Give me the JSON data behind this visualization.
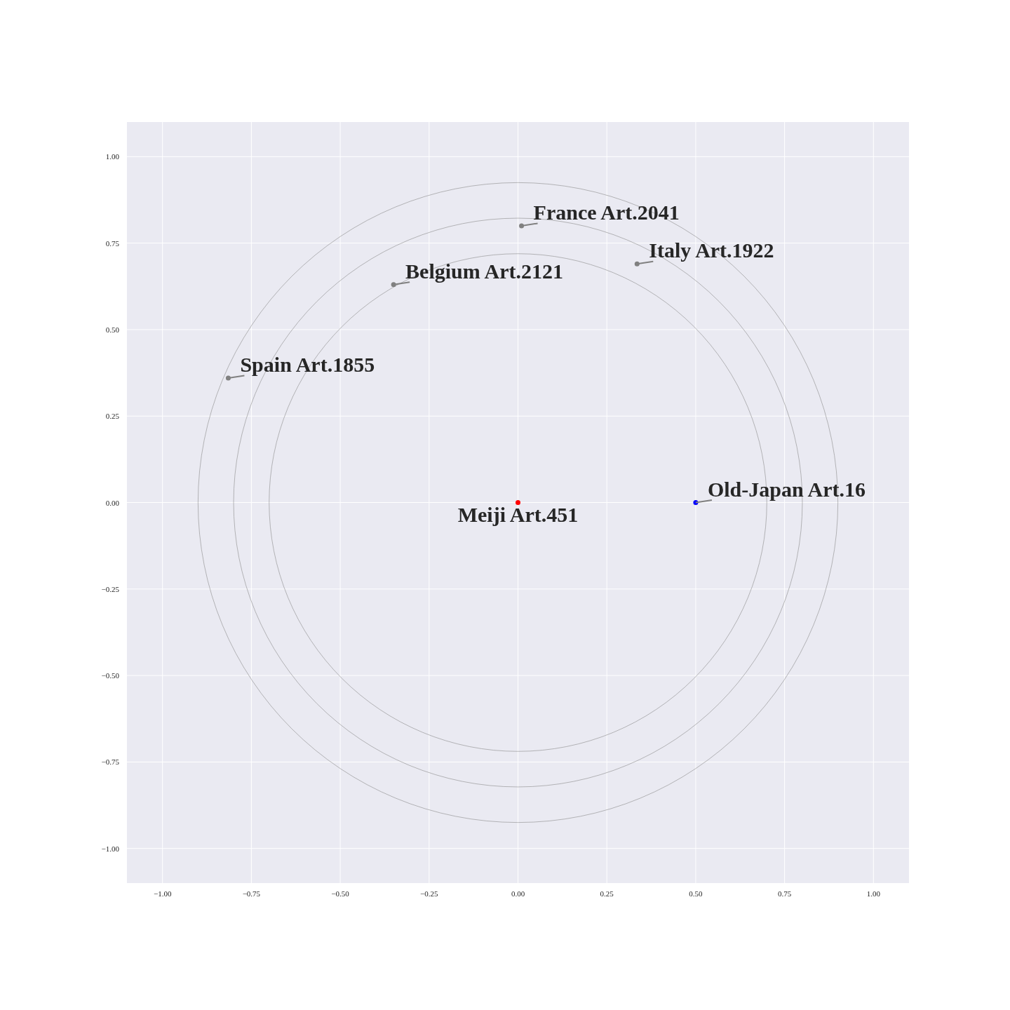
{
  "chart_data": {
    "type": "scatter",
    "xlim": [
      -1.1,
      1.1
    ],
    "ylim": [
      -1.1,
      1.1
    ],
    "xticks": [
      {
        "value": -1,
        "label": "−1.00"
      },
      {
        "value": -0.75,
        "label": "−0.75"
      },
      {
        "value": -0.5,
        "label": "−0.50"
      },
      {
        "value": -0.25,
        "label": "−0.25"
      },
      {
        "value": 0,
        "label": "0.00"
      },
      {
        "value": 0.25,
        "label": "0.25"
      },
      {
        "value": 0.5,
        "label": "0.50"
      },
      {
        "value": 0.75,
        "label": "0.75"
      },
      {
        "value": 1,
        "label": "1.00"
      }
    ],
    "yticks": [
      {
        "value": -1,
        "label": "−1.00"
      },
      {
        "value": -0.75,
        "label": "−0.75"
      },
      {
        "value": -0.5,
        "label": "−0.50"
      },
      {
        "value": -0.25,
        "label": "−0.25"
      },
      {
        "value": 0,
        "label": "0.00"
      },
      {
        "value": 0.25,
        "label": "0.25"
      },
      {
        "value": 0.5,
        "label": "0.50"
      },
      {
        "value": 0.75,
        "label": "0.75"
      },
      {
        "value": 1,
        "label": "1.00"
      }
    ],
    "grid": true,
    "series": [
      {
        "marker": "circle",
        "x": [
          0,
          0.5,
          0.01,
          0.335,
          -0.35,
          -0.815
        ],
        "values": [
          0,
          0,
          0.8,
          0.69,
          0.63,
          0.36
        ],
        "colors": [
          "#ff0000",
          "#0000ff",
          "#808080",
          "#808080",
          "#808080",
          "#808080"
        ]
      }
    ],
    "annotations": [
      {
        "text": "Meiji Art.451",
        "x": 0,
        "y": 0
      },
      {
        "text": "Old-Japan Art.16",
        "x": 0.5,
        "y": 0
      },
      {
        "text": "France Art.2041",
        "x": 0.01,
        "y": 0.8
      },
      {
        "text": "Italy Art.1922",
        "x": 0.335,
        "y": 0.69
      },
      {
        "text": "Belgium Art.2121",
        "x": -0.35,
        "y": 0.63
      },
      {
        "text": "Spain Art.1855",
        "x": -0.815,
        "y": 0.36
      }
    ]
  }
}
